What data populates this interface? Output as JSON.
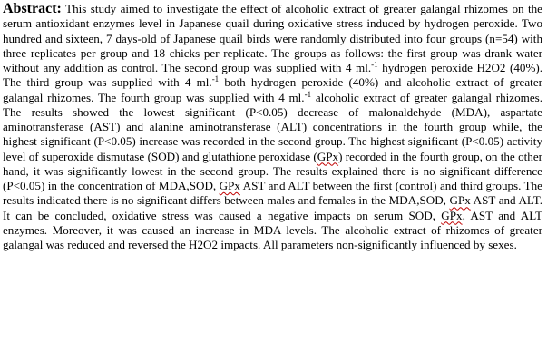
{
  "abstract": {
    "heading": "Abstract:",
    "s1": " This study aimed to investigate the effect of alcoholic extract of greater galangal rhizomes on the serum antioxidant enzymes level in Japanese quail during oxidative stress induced by hydrogen peroxide. Two hundred and sixteen, 7 days-old of Japanese quail birds were randomly distributed into four groups (n=54) with three replicates per group and 18 chicks per replicate. The groups as follows: the first group was drank water without any addition as control. The second group was supplied with 4 ml.",
    "sup1": "-1",
    "s2": " hydrogen peroxide H2O2 (40%). The third group was supplied with 4 ml.",
    "sup2": "-1",
    "s3": " both hydrogen peroxide (40%) and alcoholic extract of greater galangal rhizomes. The fourth group was supplied with 4 ml.",
    "sup3": "-1",
    "s4": " alcoholic extract of greater galangal rhizomes. The results showed the lowest significant (P<0.05) decrease of malonaldehyde (MDA), aspartate aminotransferase (AST) and alanine aminotransferase (ALT) concentrations in the fourth group while, the highest significant (P<0.05) increase was recorded in the second group. The highest significant (P<0.05) activity level of superoxide dismutase (SOD) and glutathione peroxidase (",
    "gpx1": "GPx",
    "s5": ") recorded in the fourth group, on the other hand, it was significantly lowest in the second group. The results explained there is no significant difference (P<0.05) in the concentration of MDA,SOD, ",
    "gpx2": "GPx",
    "s6": " AST and ALT between the first (control) and third groups. The results indicated  there is no significant differs between males and females in the MDA,SOD, ",
    "gpx3": "GPx",
    "s7": " AST and ALT. It can be concluded, oxidative stress was caused a negative impacts on serum SOD, ",
    "gpx4": "GPx",
    "s8": ", AST and ALT enzymes. Moreover, it was caused an increase in MDA levels. The alcoholic extract of rhizomes of greater galangal was reduced and reversed the H2O2 impacts. All parameters non-significantly influenced by sexes."
  }
}
